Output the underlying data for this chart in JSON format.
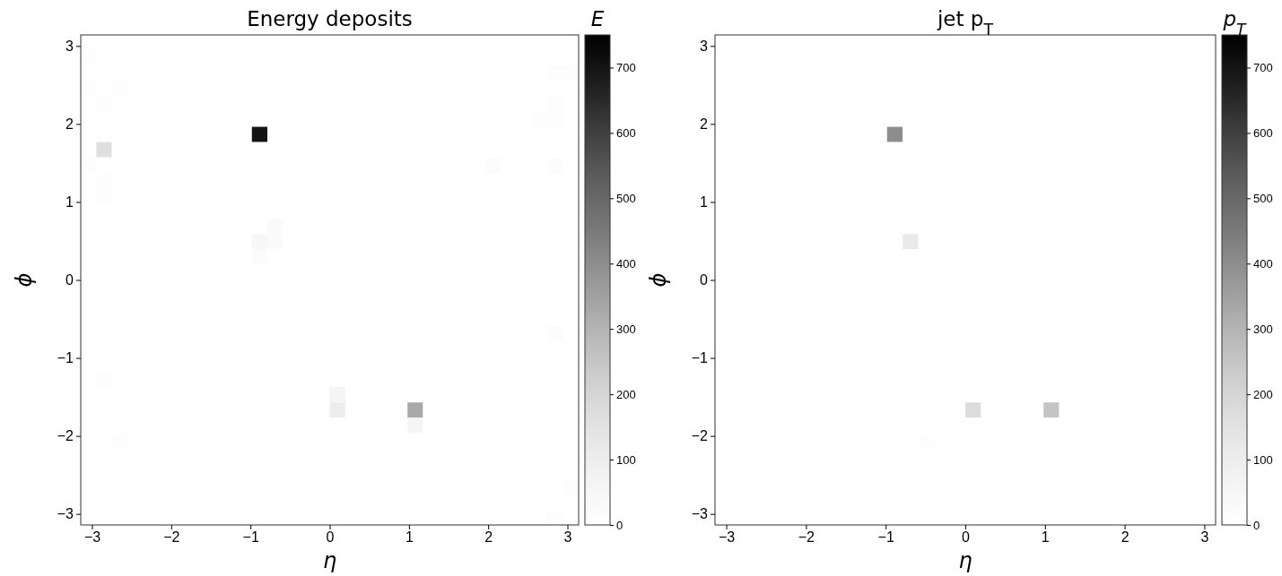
{
  "chart_data": [
    {
      "type": "heatmap",
      "title": "Energy deposits",
      "xlabel": "η",
      "ylabel": "ϕ",
      "clabel": "E",
      "xlim": [
        -3.1416,
        3.1416
      ],
      "ylim": [
        -3.1416,
        3.1416
      ],
      "xticks": [
        -3,
        -2,
        -1,
        0,
        1,
        2,
        3
      ],
      "yticks": [
        -3,
        -2,
        -1,
        0,
        1,
        2,
        3
      ],
      "clim": [
        0,
        750
      ],
      "cticks": [
        0,
        100,
        200,
        300,
        400,
        500,
        600,
        700
      ],
      "cells": [
        [
          0,
          0,
          0,
          0,
          0,
          0,
          0,
          0,
          0,
          0,
          0,
          0,
          0,
          0,
          0,
          0,
          0,
          0,
          0,
          0,
          0,
          0,
          0,
          0,
          0,
          0,
          0,
          0,
          0,
          0,
          0,
          0
        ],
        [
          15,
          0,
          0,
          0,
          0,
          0,
          0,
          0,
          0,
          0,
          0,
          0,
          0,
          0,
          0,
          0,
          0,
          0,
          0,
          0,
          0,
          0,
          0,
          0,
          0,
          0,
          0,
          0,
          0,
          0,
          0,
          0
        ],
        [
          0,
          0,
          0,
          0,
          0,
          0,
          0,
          0,
          0,
          0,
          0,
          0,
          0,
          0,
          0,
          0,
          0,
          0,
          0,
          0,
          0,
          0,
          0,
          0,
          0,
          0,
          0,
          0,
          0,
          0,
          15,
          10
        ],
        [
          15,
          0,
          10,
          0,
          0,
          0,
          0,
          0,
          0,
          0,
          0,
          0,
          0,
          0,
          0,
          0,
          0,
          0,
          0,
          0,
          0,
          0,
          0,
          0,
          0,
          0,
          0,
          0,
          0,
          0,
          0,
          0
        ],
        [
          0,
          15,
          0,
          0,
          0,
          0,
          0,
          0,
          0,
          0,
          0,
          0,
          0,
          0,
          0,
          0,
          0,
          0,
          0,
          0,
          0,
          0,
          0,
          0,
          0,
          0,
          0,
          0,
          0,
          0,
          15,
          0
        ],
        [
          0,
          0,
          0,
          0,
          0,
          0,
          0,
          0,
          0,
          0,
          0,
          0,
          0,
          0,
          0,
          0,
          0,
          0,
          0,
          0,
          0,
          0,
          0,
          0,
          0,
          0,
          0,
          0,
          0,
          15,
          15,
          0
        ],
        [
          0,
          0,
          0,
          0,
          0,
          0,
          0,
          0,
          0,
          0,
          0,
          700,
          0,
          0,
          0,
          0,
          0,
          0,
          0,
          0,
          0,
          0,
          0,
          0,
          0,
          0,
          0,
          0,
          0,
          0,
          0,
          0
        ],
        [
          0,
          160,
          0,
          0,
          0,
          0,
          0,
          0,
          0,
          0,
          0,
          0,
          0,
          0,
          0,
          0,
          0,
          0,
          0,
          0,
          0,
          0,
          0,
          0,
          0,
          0,
          0,
          0,
          0,
          0,
          0,
          0
        ],
        [
          10,
          0,
          0,
          0,
          0,
          0,
          0,
          0,
          0,
          0,
          0,
          0,
          0,
          0,
          0,
          0,
          0,
          0,
          0,
          0,
          0,
          0,
          0,
          0,
          0,
          0,
          20,
          0,
          0,
          0,
          20,
          0
        ],
        [
          0,
          15,
          0,
          0,
          0,
          0,
          0,
          0,
          0,
          0,
          0,
          0,
          0,
          0,
          0,
          0,
          0,
          0,
          0,
          0,
          0,
          0,
          0,
          0,
          0,
          0,
          0,
          0,
          0,
          0,
          0,
          0
        ],
        [
          0,
          15,
          0,
          0,
          0,
          0,
          0,
          0,
          0,
          0,
          0,
          0,
          0,
          0,
          0,
          0,
          0,
          0,
          0,
          0,
          0,
          0,
          0,
          0,
          0,
          0,
          0,
          0,
          0,
          0,
          0,
          0
        ],
        [
          0,
          0,
          0,
          0,
          0,
          0,
          0,
          0,
          0,
          0,
          0,
          0,
          0,
          0,
          0,
          0,
          0,
          0,
          0,
          0,
          0,
          0,
          0,
          0,
          0,
          0,
          0,
          0,
          0,
          0,
          0,
          0
        ],
        [
          0,
          0,
          0,
          0,
          0,
          0,
          0,
          0,
          0,
          0,
          0,
          0,
          30,
          0,
          0,
          0,
          0,
          0,
          0,
          0,
          0,
          0,
          0,
          0,
          0,
          0,
          0,
          0,
          0,
          0,
          0,
          0
        ],
        [
          0,
          0,
          0,
          0,
          0,
          0,
          0,
          0,
          0,
          0,
          0,
          50,
          30,
          0,
          0,
          0,
          0,
          0,
          0,
          0,
          0,
          0,
          0,
          0,
          0,
          0,
          0,
          0,
          0,
          0,
          0,
          0
        ],
        [
          0,
          0,
          0,
          0,
          0,
          0,
          0,
          0,
          0,
          0,
          0,
          25,
          0,
          0,
          0,
          0,
          0,
          0,
          0,
          0,
          0,
          0,
          0,
          0,
          0,
          0,
          0,
          0,
          0,
          0,
          0,
          0
        ],
        [
          0,
          0,
          0,
          0,
          0,
          0,
          0,
          0,
          0,
          0,
          0,
          0,
          0,
          0,
          0,
          0,
          0,
          0,
          0,
          0,
          0,
          0,
          0,
          0,
          0,
          0,
          0,
          0,
          0,
          0,
          0,
          0
        ],
        [
          0,
          0,
          0,
          0,
          0,
          0,
          0,
          0,
          0,
          0,
          0,
          0,
          0,
          0,
          0,
          0,
          0,
          0,
          0,
          0,
          0,
          0,
          0,
          0,
          0,
          0,
          0,
          0,
          0,
          0,
          0,
          0
        ],
        [
          0,
          0,
          0,
          0,
          0,
          0,
          0,
          0,
          0,
          0,
          0,
          0,
          0,
          0,
          0,
          0,
          0,
          0,
          0,
          0,
          0,
          0,
          0,
          0,
          0,
          0,
          0,
          0,
          0,
          0,
          0,
          0
        ],
        [
          0,
          0,
          0,
          0,
          0,
          0,
          0,
          0,
          0,
          0,
          0,
          0,
          0,
          0,
          0,
          0,
          0,
          0,
          0,
          0,
          0,
          0,
          0,
          0,
          0,
          0,
          0,
          0,
          0,
          0,
          0,
          0
        ],
        [
          0,
          0,
          0,
          0,
          0,
          0,
          0,
          0,
          0,
          0,
          0,
          0,
          0,
          0,
          0,
          0,
          0,
          0,
          0,
          0,
          0,
          0,
          0,
          0,
          0,
          0,
          0,
          0,
          0,
          0,
          20,
          0
        ],
        [
          0,
          0,
          0,
          0,
          0,
          0,
          0,
          0,
          0,
          0,
          0,
          0,
          0,
          0,
          0,
          0,
          0,
          0,
          0,
          0,
          0,
          0,
          0,
          0,
          0,
          0,
          0,
          0,
          0,
          0,
          0,
          0
        ],
        [
          0,
          0,
          0,
          0,
          0,
          0,
          0,
          0,
          0,
          0,
          0,
          0,
          0,
          0,
          0,
          0,
          0,
          0,
          0,
          0,
          0,
          0,
          0,
          0,
          0,
          0,
          0,
          0,
          0,
          0,
          0,
          0
        ],
        [
          0,
          15,
          0,
          0,
          0,
          0,
          0,
          0,
          0,
          0,
          0,
          0,
          0,
          0,
          0,
          0,
          0,
          0,
          0,
          0,
          0,
          0,
          0,
          0,
          0,
          0,
          0,
          0,
          0,
          0,
          0,
          0
        ],
        [
          0,
          0,
          0,
          0,
          0,
          0,
          0,
          0,
          0,
          0,
          0,
          0,
          0,
          0,
          0,
          0,
          60,
          0,
          0,
          0,
          0,
          0,
          0,
          0,
          0,
          0,
          0,
          0,
          0,
          0,
          0,
          0
        ],
        [
          0,
          0,
          0,
          0,
          0,
          0,
          0,
          0,
          0,
          0,
          0,
          0,
          0,
          0,
          0,
          0,
          100,
          0,
          0,
          0,
          0,
          330,
          0,
          0,
          0,
          0,
          0,
          0,
          0,
          0,
          0,
          0
        ],
        [
          0,
          0,
          0,
          0,
          0,
          0,
          0,
          0,
          0,
          0,
          0,
          0,
          0,
          0,
          0,
          0,
          0,
          0,
          0,
          0,
          0,
          60,
          0,
          0,
          0,
          0,
          0,
          0,
          0,
          0,
          0,
          0
        ],
        [
          0,
          0,
          12,
          0,
          0,
          0,
          0,
          0,
          0,
          0,
          0,
          0,
          0,
          0,
          0,
          0,
          0,
          0,
          0,
          0,
          0,
          0,
          0,
          0,
          0,
          0,
          0,
          0,
          0,
          0,
          0,
          0
        ],
        [
          0,
          0,
          0,
          0,
          0,
          0,
          0,
          0,
          0,
          0,
          0,
          0,
          0,
          0,
          0,
          0,
          0,
          0,
          0,
          0,
          0,
          0,
          0,
          0,
          0,
          0,
          0,
          0,
          0,
          0,
          0,
          0
        ],
        [
          0,
          0,
          0,
          0,
          0,
          0,
          0,
          0,
          0,
          0,
          0,
          0,
          0,
          0,
          0,
          0,
          0,
          0,
          0,
          0,
          0,
          0,
          0,
          0,
          0,
          0,
          0,
          0,
          0,
          0,
          0,
          0
        ],
        [
          0,
          0,
          0,
          0,
          0,
          0,
          0,
          0,
          0,
          0,
          0,
          0,
          0,
          0,
          0,
          0,
          0,
          0,
          0,
          0,
          0,
          0,
          0,
          0,
          0,
          0,
          0,
          0,
          0,
          0,
          0,
          12
        ],
        [
          0,
          0,
          0,
          0,
          0,
          0,
          0,
          0,
          0,
          0,
          0,
          0,
          0,
          0,
          0,
          0,
          0,
          0,
          0,
          0,
          0,
          0,
          0,
          0,
          0,
          0,
          0,
          0,
          0,
          0,
          0,
          0
        ],
        [
          0,
          0,
          0,
          0,
          0,
          0,
          0,
          0,
          0,
          0,
          0,
          0,
          0,
          0,
          0,
          0,
          0,
          0,
          0,
          0,
          0,
          0,
          0,
          0,
          0,
          0,
          0,
          0,
          0,
          0,
          15,
          0
        ]
      ]
    },
    {
      "type": "heatmap",
      "title": "jet p$_{T}$",
      "xlabel": "η",
      "ylabel": "ϕ",
      "clabel": "p$_{T}$",
      "xlim": [
        -3.1416,
        3.1416
      ],
      "ylim": [
        -3.1416,
        3.1416
      ],
      "xticks": [
        -3,
        -2,
        -1,
        0,
        1,
        2,
        3
      ],
      "yticks": [
        -3,
        -2,
        -1,
        0,
        1,
        2,
        3
      ],
      "clim": [
        0,
        750
      ],
      "cticks": [
        0,
        100,
        200,
        300,
        400,
        500,
        600,
        700
      ],
      "cells": [
        [
          0,
          0,
          0,
          0,
          0,
          0,
          0,
          0,
          0,
          0,
          0,
          0,
          0,
          0,
          0,
          0,
          0,
          0,
          0,
          0,
          0,
          0,
          0,
          0,
          0,
          0,
          0,
          0,
          0,
          0,
          0,
          0
        ],
        [
          0,
          0,
          0,
          0,
          0,
          0,
          0,
          0,
          0,
          0,
          0,
          0,
          0,
          0,
          0,
          0,
          0,
          0,
          0,
          0,
          0,
          0,
          0,
          0,
          0,
          0,
          0,
          0,
          0,
          0,
          0,
          0
        ],
        [
          0,
          0,
          0,
          0,
          0,
          0,
          0,
          0,
          0,
          0,
          0,
          0,
          0,
          0,
          0,
          0,
          0,
          0,
          0,
          0,
          0,
          0,
          0,
          0,
          0,
          0,
          0,
          0,
          0,
          0,
          0,
          0
        ],
        [
          0,
          0,
          0,
          0,
          0,
          0,
          0,
          0,
          0,
          0,
          0,
          0,
          0,
          0,
          0,
          0,
          0,
          0,
          0,
          0,
          0,
          0,
          0,
          0,
          0,
          0,
          0,
          0,
          0,
          0,
          0,
          0
        ],
        [
          0,
          0,
          0,
          0,
          0,
          0,
          0,
          0,
          0,
          0,
          0,
          0,
          0,
          0,
          0,
          0,
          0,
          0,
          0,
          0,
          0,
          0,
          0,
          0,
          0,
          0,
          0,
          0,
          0,
          0,
          0,
          0
        ],
        [
          0,
          0,
          0,
          0,
          0,
          0,
          0,
          0,
          0,
          0,
          0,
          0,
          0,
          0,
          0,
          0,
          0,
          0,
          0,
          0,
          0,
          0,
          0,
          0,
          0,
          0,
          0,
          0,
          0,
          0,
          0,
          0
        ],
        [
          0,
          0,
          0,
          0,
          0,
          0,
          0,
          0,
          0,
          0,
          0,
          400,
          0,
          0,
          0,
          0,
          0,
          0,
          0,
          0,
          0,
          0,
          0,
          0,
          0,
          0,
          0,
          0,
          0,
          0,
          0,
          0
        ],
        [
          0,
          0,
          0,
          0,
          0,
          0,
          0,
          0,
          0,
          0,
          0,
          0,
          0,
          0,
          0,
          0,
          0,
          0,
          0,
          0,
          0,
          0,
          0,
          0,
          0,
          0,
          0,
          0,
          0,
          0,
          0,
          0
        ],
        [
          0,
          0,
          0,
          0,
          0,
          0,
          0,
          0,
          0,
          0,
          0,
          0,
          0,
          0,
          0,
          0,
          0,
          0,
          0,
          0,
          0,
          0,
          0,
          0,
          0,
          0,
          0,
          0,
          0,
          0,
          0,
          0
        ],
        [
          0,
          0,
          0,
          0,
          0,
          0,
          0,
          0,
          0,
          0,
          0,
          0,
          0,
          0,
          0,
          0,
          0,
          0,
          0,
          0,
          0,
          0,
          0,
          0,
          0,
          0,
          0,
          0,
          0,
          0,
          0,
          0
        ],
        [
          0,
          0,
          0,
          0,
          0,
          0,
          0,
          0,
          0,
          0,
          0,
          0,
          0,
          0,
          0,
          0,
          0,
          0,
          0,
          0,
          0,
          0,
          0,
          0,
          0,
          0,
          0,
          0,
          0,
          0,
          0,
          0
        ],
        [
          0,
          0,
          0,
          0,
          0,
          0,
          0,
          0,
          0,
          0,
          0,
          0,
          0,
          0,
          0,
          0,
          0,
          0,
          0,
          0,
          0,
          0,
          0,
          0,
          0,
          0,
          0,
          0,
          0,
          0,
          0,
          0
        ],
        [
          0,
          0,
          0,
          0,
          0,
          0,
          0,
          0,
          0,
          0,
          0,
          0,
          0,
          0,
          0,
          0,
          0,
          0,
          0,
          0,
          0,
          0,
          0,
          0,
          0,
          0,
          0,
          0,
          0,
          0,
          0,
          0
        ],
        [
          0,
          0,
          0,
          0,
          0,
          0,
          0,
          0,
          0,
          0,
          0,
          0,
          115,
          0,
          0,
          0,
          0,
          0,
          0,
          0,
          0,
          0,
          0,
          0,
          0,
          0,
          0,
          0,
          0,
          0,
          0,
          0
        ],
        [
          0,
          0,
          0,
          0,
          0,
          0,
          0,
          0,
          0,
          0,
          0,
          0,
          0,
          0,
          0,
          0,
          0,
          0,
          0,
          0,
          0,
          0,
          0,
          0,
          0,
          0,
          0,
          0,
          0,
          0,
          0,
          0
        ],
        [
          0,
          0,
          0,
          0,
          0,
          0,
          0,
          0,
          0,
          0,
          0,
          0,
          0,
          0,
          0,
          0,
          0,
          0,
          0,
          0,
          0,
          0,
          0,
          0,
          0,
          0,
          0,
          0,
          0,
          0,
          0,
          0
        ],
        [
          0,
          0,
          0,
          0,
          0,
          0,
          0,
          0,
          0,
          0,
          0,
          0,
          0,
          0,
          0,
          0,
          0,
          0,
          0,
          0,
          0,
          0,
          0,
          0,
          0,
          0,
          0,
          0,
          0,
          0,
          0,
          0
        ],
        [
          0,
          0,
          0,
          0,
          0,
          0,
          0,
          0,
          0,
          0,
          0,
          0,
          0,
          0,
          0,
          0,
          0,
          0,
          0,
          0,
          0,
          0,
          0,
          0,
          0,
          0,
          0,
          0,
          0,
          0,
          0,
          0
        ],
        [
          0,
          0,
          0,
          0,
          0,
          0,
          0,
          0,
          0,
          0,
          0,
          0,
          0,
          0,
          0,
          0,
          0,
          0,
          0,
          0,
          0,
          0,
          0,
          0,
          0,
          0,
          0,
          0,
          0,
          0,
          0,
          0
        ],
        [
          0,
          0,
          0,
          0,
          0,
          0,
          0,
          0,
          0,
          0,
          0,
          0,
          0,
          0,
          0,
          0,
          0,
          0,
          0,
          0,
          0,
          0,
          0,
          0,
          0,
          0,
          0,
          0,
          0,
          0,
          0,
          0
        ],
        [
          0,
          0,
          0,
          0,
          0,
          0,
          0,
          0,
          0,
          0,
          0,
          0,
          0,
          0,
          0,
          0,
          0,
          0,
          0,
          0,
          0,
          0,
          0,
          0,
          0,
          0,
          0,
          0,
          0,
          0,
          0,
          0
        ],
        [
          0,
          0,
          0,
          0,
          0,
          0,
          0,
          0,
          0,
          0,
          0,
          0,
          0,
          0,
          0,
          0,
          0,
          0,
          0,
          0,
          0,
          0,
          0,
          0,
          0,
          0,
          0,
          0,
          0,
          0,
          0,
          0
        ],
        [
          0,
          0,
          0,
          0,
          0,
          0,
          0,
          0,
          0,
          0,
          0,
          0,
          0,
          0,
          0,
          0,
          0,
          0,
          0,
          0,
          0,
          0,
          0,
          0,
          0,
          0,
          0,
          0,
          0,
          0,
          0,
          0
        ],
        [
          0,
          0,
          0,
          0,
          0,
          0,
          0,
          0,
          0,
          0,
          0,
          0,
          0,
          0,
          0,
          0,
          0,
          0,
          0,
          0,
          0,
          0,
          0,
          0,
          0,
          0,
          0,
          0,
          0,
          0,
          0,
          0
        ],
        [
          0,
          0,
          0,
          0,
          0,
          0,
          0,
          0,
          0,
          0,
          0,
          0,
          0,
          0,
          0,
          0,
          175,
          0,
          0,
          0,
          0,
          255,
          0,
          0,
          0,
          0,
          0,
          0,
          0,
          0,
          0,
          0
        ],
        [
          0,
          0,
          0,
          0,
          0,
          0,
          0,
          0,
          0,
          0,
          0,
          0,
          0,
          0,
          0,
          0,
          0,
          0,
          0,
          0,
          0,
          0,
          0,
          0,
          0,
          0,
          0,
          0,
          0,
          0,
          0,
          0
        ],
        [
          0,
          0,
          0,
          0,
          0,
          0,
          0,
          0,
          0,
          0,
          0,
          0,
          0,
          12,
          0,
          0,
          0,
          0,
          0,
          0,
          0,
          0,
          0,
          0,
          0,
          0,
          0,
          0,
          0,
          0,
          0,
          0
        ],
        [
          0,
          0,
          0,
          0,
          0,
          0,
          0,
          0,
          0,
          0,
          0,
          0,
          0,
          0,
          0,
          0,
          0,
          0,
          0,
          0,
          0,
          0,
          0,
          0,
          0,
          0,
          0,
          0,
          0,
          0,
          0,
          0
        ],
        [
          0,
          0,
          0,
          0,
          0,
          0,
          0,
          0,
          0,
          0,
          0,
          0,
          0,
          0,
          0,
          0,
          0,
          0,
          0,
          0,
          0,
          0,
          0,
          0,
          0,
          0,
          0,
          0,
          0,
          0,
          0,
          0
        ],
        [
          0,
          0,
          0,
          0,
          0,
          0,
          0,
          0,
          0,
          0,
          0,
          0,
          0,
          0,
          0,
          0,
          0,
          0,
          0,
          0,
          0,
          0,
          0,
          0,
          0,
          0,
          0,
          0,
          0,
          0,
          0,
          0
        ],
        [
          0,
          0,
          0,
          0,
          0,
          0,
          0,
          0,
          0,
          0,
          0,
          0,
          0,
          0,
          0,
          0,
          0,
          0,
          0,
          0,
          0,
          0,
          0,
          0,
          0,
          0,
          0,
          0,
          0,
          0,
          0,
          0
        ],
        [
          0,
          0,
          0,
          0,
          0,
          0,
          0,
          0,
          0,
          0,
          0,
          0,
          0,
          0,
          0,
          0,
          0,
          0,
          0,
          0,
          0,
          0,
          0,
          0,
          0,
          0,
          0,
          0,
          0,
          0,
          0,
          0
        ]
      ]
    }
  ]
}
